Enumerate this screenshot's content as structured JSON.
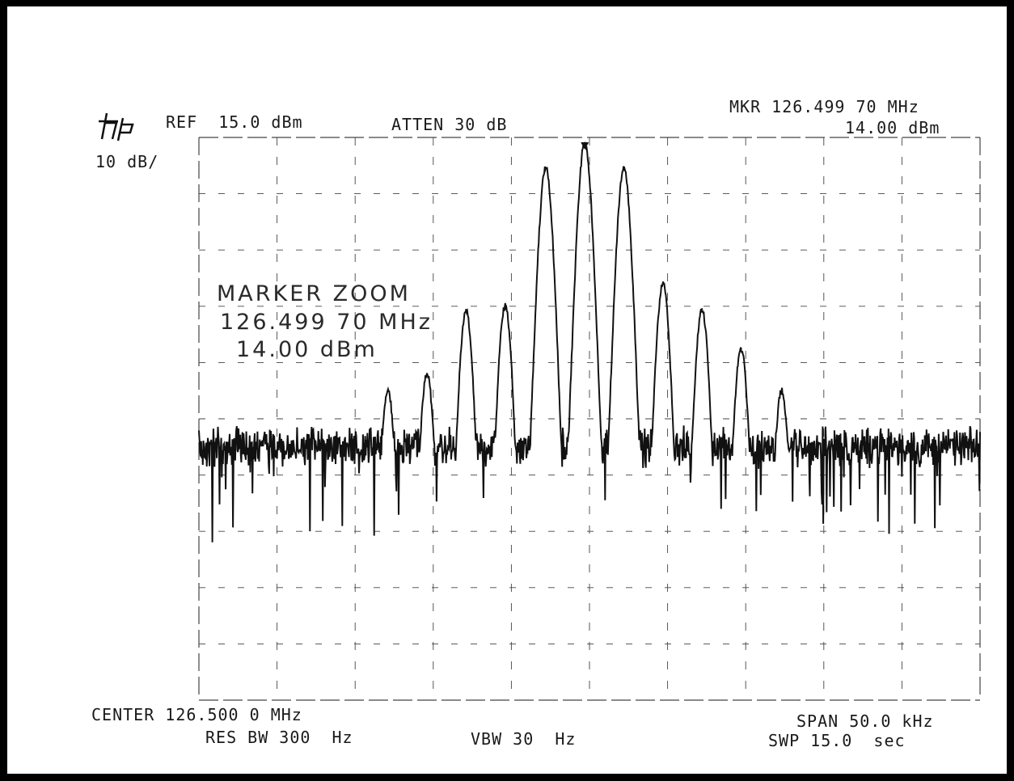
{
  "header": {
    "logo": "hp-logo",
    "ref_level": "REF  15.0 dBm",
    "attenuation": "ATTEN 30 dB",
    "scale": "10 dB/",
    "marker_freq": "MKR 126.499 70 MHz",
    "marker_level": "14.00 dBm"
  },
  "marker_zoom": {
    "title": "MARKER ZOOM",
    "freq": "126.499 70 MHz",
    "level": "14.00 dBm"
  },
  "footer": {
    "center": "CENTER 126.500 0 MHz",
    "res_bw": "RES BW 300  Hz",
    "vbw": "VBW 30  Hz",
    "span": "SPAN 50.0 kHz",
    "sweep": "SWP 15.0  sec"
  },
  "chart_data": {
    "type": "line",
    "x_unit": "kHz offset from center",
    "y_unit": "dBm",
    "xlim": [
      -25,
      25
    ],
    "ylim": [
      -85,
      15
    ],
    "grid": true,
    "reference_level_dbm": 15.0,
    "noise_floor_dbm": -40,
    "marker": {
      "x": -0.3,
      "y": 14.0
    },
    "peaks": [
      {
        "x": -12.9,
        "y": -30
      },
      {
        "x": -10.4,
        "y": -27
      },
      {
        "x": -7.9,
        "y": -16
      },
      {
        "x": -5.4,
        "y": -15
      },
      {
        "x": -2.8,
        "y": 9.5
      },
      {
        "x": -0.3,
        "y": 14.0
      },
      {
        "x": 2.2,
        "y": 9.5
      },
      {
        "x": 4.7,
        "y": -11
      },
      {
        "x": 7.2,
        "y": -15.5
      },
      {
        "x": 9.7,
        "y": -22.5
      },
      {
        "x": 12.3,
        "y": -30
      }
    ]
  }
}
